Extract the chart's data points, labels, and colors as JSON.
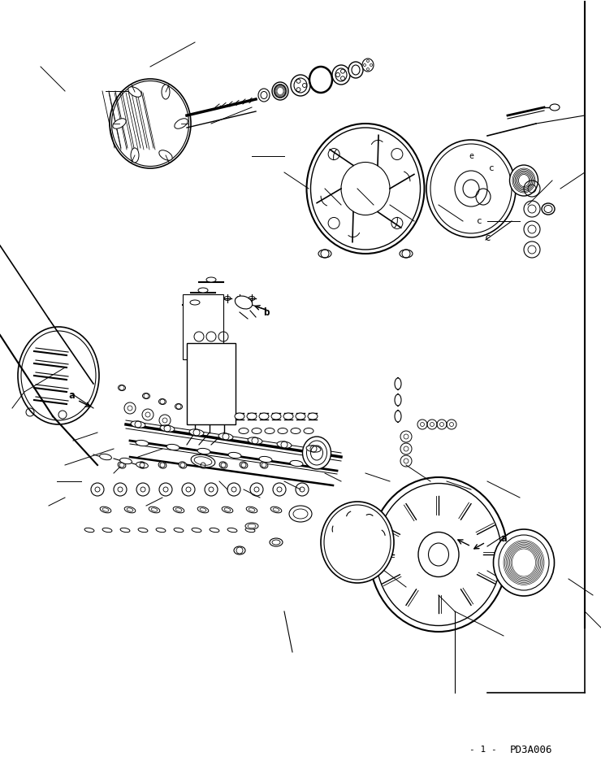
{
  "bg_color": "#ffffff",
  "line_color": "#000000",
  "fig_width": 7.4,
  "fig_height": 9.52,
  "dpi": 100,
  "watermark": "PD3A006",
  "label_a": "a",
  "label_b": "b",
  "label_c": "c"
}
